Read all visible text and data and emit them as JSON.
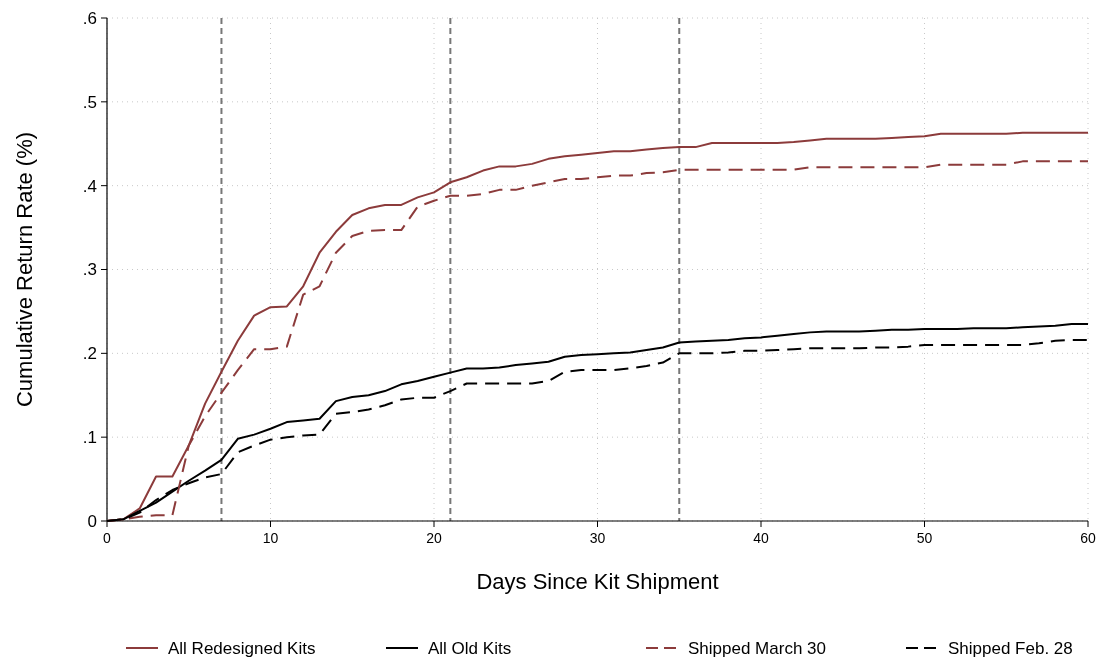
{
  "chart_data": {
    "type": "line",
    "xlabel": "Days Since Kit Shipment",
    "ylabel": "Cumulative Return Rate (%)",
    "x": [
      0,
      1,
      2,
      3,
      4,
      5,
      6,
      7,
      8,
      9,
      10,
      11,
      12,
      13,
      14,
      15,
      16,
      17,
      18,
      19,
      20,
      21,
      22,
      23,
      24,
      25,
      26,
      27,
      28,
      29,
      30,
      31,
      32,
      33,
      34,
      35,
      36,
      37,
      38,
      39,
      40,
      41,
      42,
      43,
      44,
      45,
      46,
      47,
      48,
      49,
      50,
      51,
      52,
      53,
      54,
      55,
      56,
      57,
      58,
      59,
      60
    ],
    "series": [
      {
        "name": "All Redesigned Kits",
        "color": "#8c3b3b",
        "line_style": "solid",
        "values": [
          0,
          0.002,
          0.015,
          0.053,
          0.053,
          0.09,
          0.14,
          0.178,
          0.215,
          0.245,
          0.255,
          0.256,
          0.28,
          0.32,
          0.345,
          0.365,
          0.373,
          0.377,
          0.377,
          0.386,
          0.392,
          0.404,
          0.41,
          0.418,
          0.423,
          0.423,
          0.426,
          0.432,
          0.435,
          0.437,
          0.439,
          0.441,
          0.441,
          0.443,
          0.445,
          0.446,
          0.446,
          0.451,
          0.451,
          0.451,
          0.451,
          0.451,
          0.452,
          0.454,
          0.456,
          0.456,
          0.456,
          0.456,
          0.457,
          0.458,
          0.459,
          0.462,
          0.462,
          0.462,
          0.462,
          0.462,
          0.463,
          0.463,
          0.463,
          0.463,
          0.463
        ]
      },
      {
        "name": "All Old Kits",
        "color": "#000000",
        "line_style": "solid",
        "values": [
          0,
          0.002,
          0.012,
          0.022,
          0.035,
          0.048,
          0.06,
          0.073,
          0.098,
          0.103,
          0.11,
          0.118,
          0.12,
          0.122,
          0.143,
          0.148,
          0.15,
          0.155,
          0.163,
          0.167,
          0.172,
          0.177,
          0.182,
          0.182,
          0.183,
          0.186,
          0.188,
          0.19,
          0.196,
          0.198,
          0.199,
          0.2,
          0.201,
          0.204,
          0.207,
          0.213,
          0.214,
          0.215,
          0.216,
          0.218,
          0.219,
          0.221,
          0.223,
          0.225,
          0.226,
          0.226,
          0.226,
          0.227,
          0.228,
          0.228,
          0.229,
          0.229,
          0.229,
          0.23,
          0.23,
          0.23,
          0.231,
          0.232,
          0.233,
          0.235,
          0.235
        ]
      },
      {
        "name": "Shipped March 30",
        "color": "#8c3b3b",
        "line_style": "dashed",
        "values": [
          0,
          0.002,
          0.005,
          0.007,
          0.007,
          0.09,
          0.125,
          0.153,
          0.18,
          0.205,
          0.205,
          0.208,
          0.27,
          0.28,
          0.32,
          0.34,
          0.346,
          0.347,
          0.347,
          0.375,
          0.382,
          0.388,
          0.388,
          0.39,
          0.395,
          0.395,
          0.4,
          0.404,
          0.408,
          0.408,
          0.41,
          0.412,
          0.412,
          0.415,
          0.416,
          0.419,
          0.419,
          0.419,
          0.419,
          0.419,
          0.419,
          0.419,
          0.419,
          0.422,
          0.422,
          0.422,
          0.422,
          0.422,
          0.422,
          0.422,
          0.422,
          0.425,
          0.425,
          0.425,
          0.425,
          0.425,
          0.429,
          0.429,
          0.429,
          0.429,
          0.429
        ]
      },
      {
        "name": "Shipped Feb. 28",
        "color": "#000000",
        "line_style": "dashed",
        "values": [
          0,
          0.002,
          0.01,
          0.025,
          0.037,
          0.045,
          0.052,
          0.056,
          0.082,
          0.09,
          0.097,
          0.1,
          0.102,
          0.103,
          0.128,
          0.13,
          0.133,
          0.138,
          0.145,
          0.147,
          0.147,
          0.155,
          0.164,
          0.164,
          0.164,
          0.164,
          0.164,
          0.167,
          0.178,
          0.18,
          0.18,
          0.18,
          0.182,
          0.185,
          0.189,
          0.2,
          0.2,
          0.2,
          0.201,
          0.203,
          0.203,
          0.204,
          0.205,
          0.206,
          0.206,
          0.206,
          0.206,
          0.207,
          0.207,
          0.208,
          0.21,
          0.21,
          0.21,
          0.21,
          0.21,
          0.21,
          0.21,
          0.212,
          0.215,
          0.216,
          0.216
        ]
      }
    ],
    "xlim": [
      0,
      60
    ],
    "xticks": [
      0,
      10,
      20,
      30,
      40,
      50,
      60
    ],
    "ylim": [
      0,
      0.6
    ],
    "yticks": [
      {
        "value": 0,
        "label": "0"
      },
      {
        "value": 0.1,
        "label": ".1"
      },
      {
        "value": 0.2,
        "label": ".2"
      },
      {
        "value": 0.3,
        "label": ".3"
      },
      {
        "value": 0.4,
        "label": ".4"
      },
      {
        "value": 0.5,
        "label": ".5"
      },
      {
        "value": 0.6,
        "label": ".6"
      }
    ],
    "ref_lines": [
      {
        "axis": "x",
        "value": 7,
        "color": "#777777",
        "line_style": "dashed"
      },
      {
        "axis": "x",
        "value": 21,
        "color": "#777777",
        "line_style": "dashed"
      },
      {
        "axis": "x",
        "value": 35,
        "color": "#777777",
        "line_style": "dashed"
      }
    ],
    "grid": true,
    "legend": "bottom"
  }
}
